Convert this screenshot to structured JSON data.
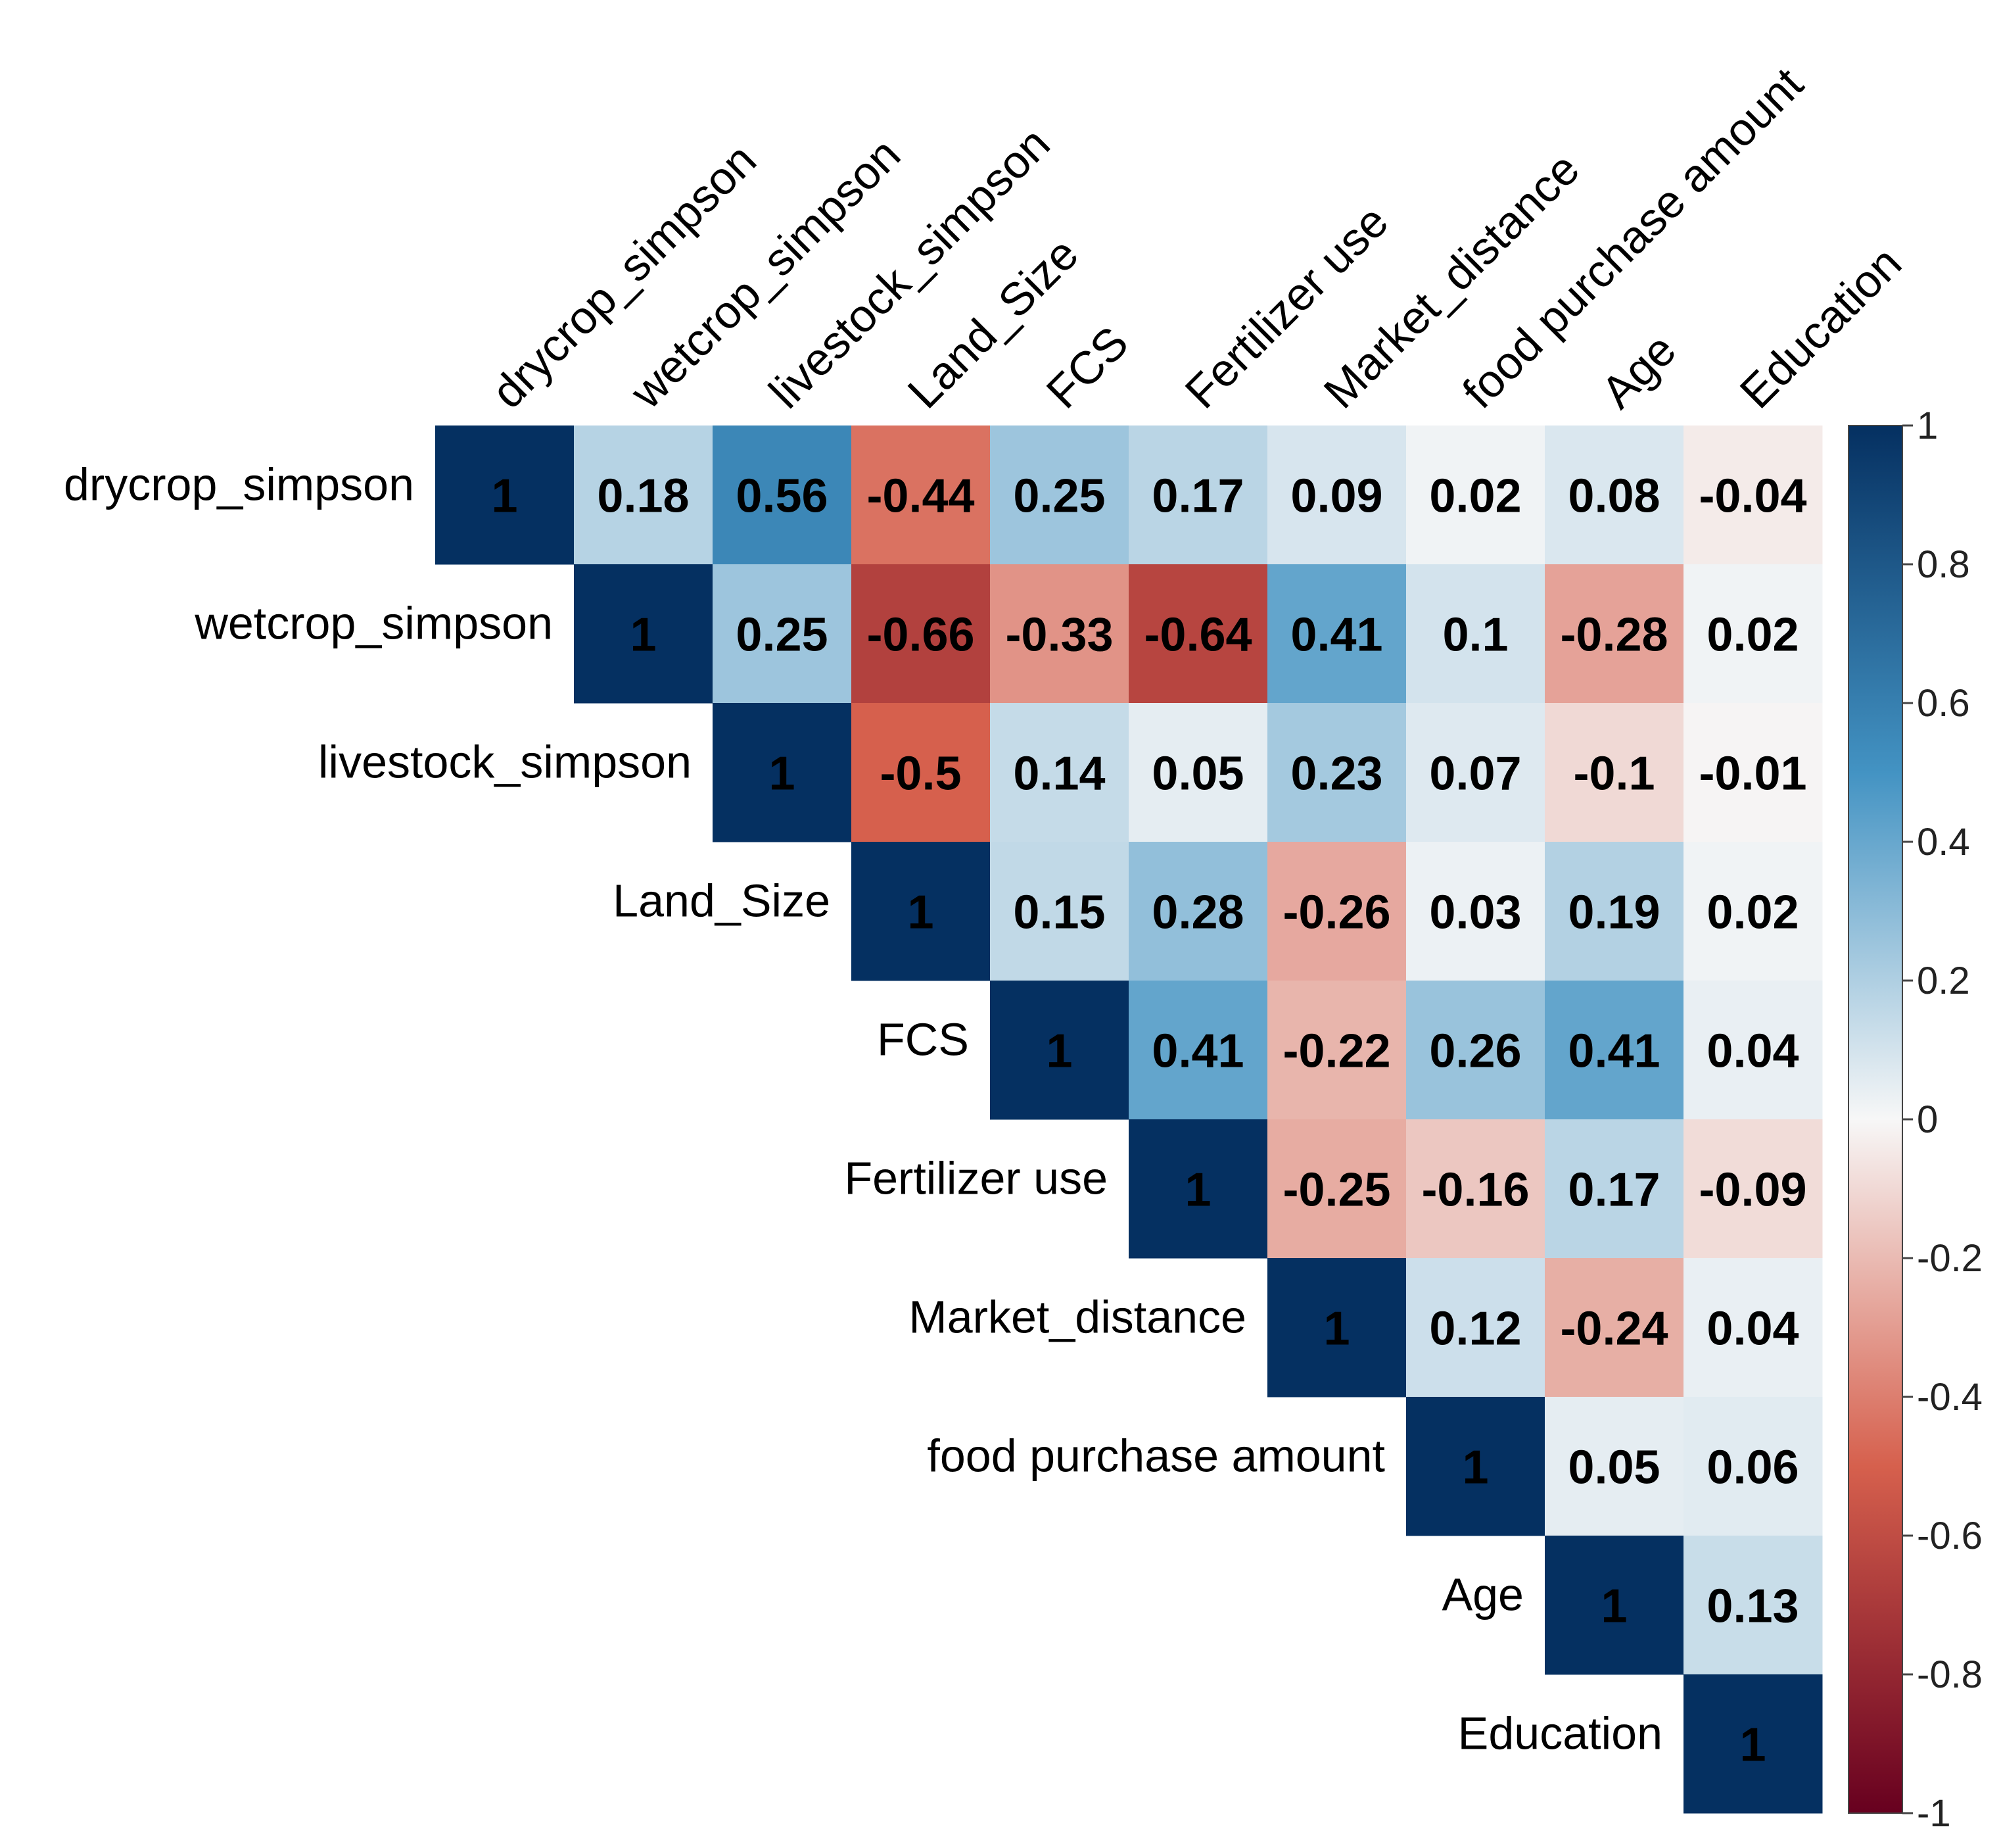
{
  "chart_data": {
    "type": "heatmap",
    "variables": [
      "drycrop_simpson",
      "wetcrop_simpson",
      "livestock_simpson",
      "Land_Size",
      "FCS",
      "Fertilizer use",
      "Market_distance",
      "food purchase amount",
      "Age",
      "Education"
    ],
    "matrix": [
      [
        1,
        0.18,
        0.56,
        -0.44,
        0.25,
        0.17,
        0.09,
        0.02,
        0.08,
        -0.04
      ],
      [
        null,
        1,
        0.25,
        -0.66,
        -0.33,
        -0.64,
        0.41,
        0.1,
        -0.28,
        0.02
      ],
      [
        null,
        null,
        1,
        -0.5,
        0.14,
        0.05,
        0.23,
        0.07,
        -0.1,
        -0.01
      ],
      [
        null,
        null,
        null,
        1,
        0.15,
        0.28,
        -0.26,
        0.03,
        0.19,
        0.02
      ],
      [
        null,
        null,
        null,
        null,
        1,
        0.41,
        -0.22,
        0.26,
        0.41,
        0.04
      ],
      [
        null,
        null,
        null,
        null,
        null,
        1,
        -0.25,
        -0.16,
        0.17,
        -0.09
      ],
      [
        null,
        null,
        null,
        null,
        null,
        null,
        1,
        0.12,
        -0.24,
        0.04
      ],
      [
        null,
        null,
        null,
        null,
        null,
        null,
        null,
        1,
        0.05,
        0.06
      ],
      [
        null,
        null,
        null,
        null,
        null,
        null,
        null,
        null,
        1,
        0.13
      ],
      [
        null,
        null,
        null,
        null,
        null,
        null,
        null,
        null,
        null,
        1
      ]
    ],
    "layout": "upper-triangle",
    "colorbar": {
      "range": [
        -1,
        1
      ],
      "ticks": [
        "1",
        "0.8",
        "0.6",
        "0.4",
        "0.2",
        "0",
        "-0.2",
        "-0.4",
        "-0.6",
        "-0.8",
        "-1"
      ],
      "placement": "right",
      "colors": {
        "neg_end": "#67001f",
        "neg_mid": "#d6604d",
        "zero": "#f7f7f7",
        "pos_mid": "#4393c3",
        "pos_end": "#053061"
      }
    }
  }
}
